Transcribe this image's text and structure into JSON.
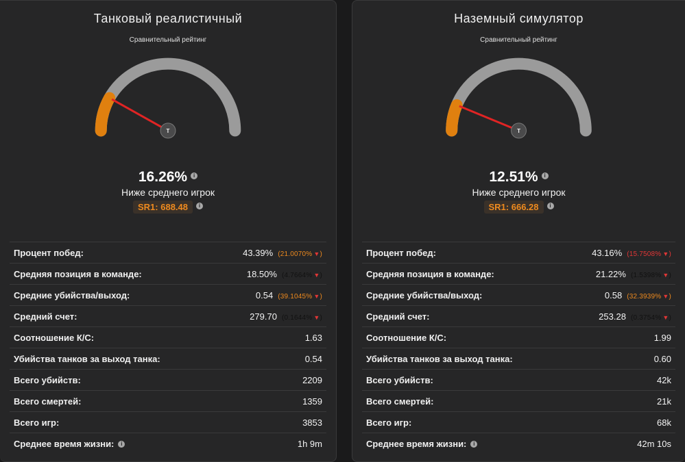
{
  "panels": [
    {
      "title": "Танковый реалистичный",
      "subtitle": "Сравнительный рейтинг",
      "gauge_percent": 16.26,
      "needle_label": "T",
      "percent": "16.26%",
      "rank": "Ниже среднего игрок",
      "sr": "SR1: 688.48",
      "stats": [
        {
          "label": "Процент побед:",
          "value": "43.39%",
          "delta": "(21.0070%",
          "delta_color": "orange"
        },
        {
          "label": "Средняя позиция в команде:",
          "value": "18.50%",
          "delta": "(4.7664%",
          "delta_color": "dark"
        },
        {
          "label": "Средние убийства/выход:",
          "value": "0.54",
          "delta": "(39.1045%",
          "delta_color": "orange"
        },
        {
          "label": "Средний счет:",
          "value": "279.70",
          "delta": "(0.1644%",
          "delta_color": "dark"
        },
        {
          "label": "Соотношение К/С:",
          "value": "1.63"
        },
        {
          "label": "Убийства танков за выход танка:",
          "value": "0.54"
        },
        {
          "label": "Всего убийств:",
          "value": "2209"
        },
        {
          "label": "Всего смертей:",
          "value": "1359"
        },
        {
          "label": "Всего игр:",
          "value": "3853"
        },
        {
          "label": "Среднее время жизни:",
          "value": "1h 9m",
          "info": true
        }
      ]
    },
    {
      "title": "Наземный симулятор",
      "subtitle": "Сравнительный рейтинг",
      "gauge_percent": 12.51,
      "needle_label": "T",
      "percent": "12.51%",
      "rank": "Ниже среднего игрок",
      "sr": "SR1: 666.28",
      "stats": [
        {
          "label": "Процент побед:",
          "value": "43.16%",
          "delta": "(15.7508%",
          "delta_color": "red"
        },
        {
          "label": "Средняя позиция в команде:",
          "value": "21.22%",
          "delta": "(1.5398%",
          "delta_color": "dark"
        },
        {
          "label": "Средние убийства/выход:",
          "value": "0.58",
          "delta": "(32.3939%",
          "delta_color": "orange"
        },
        {
          "label": "Средний счет:",
          "value": "253.28",
          "delta": "(0.3754%",
          "delta_color": "dark"
        },
        {
          "label": "Соотношение К/С:",
          "value": "1.99"
        },
        {
          "label": "Убийства танков за выход танка:",
          "value": "0.60"
        },
        {
          "label": "Всего убийств:",
          "value": "42k"
        },
        {
          "label": "Всего смертей:",
          "value": "21k"
        },
        {
          "label": "Всего игр:",
          "value": "68k"
        },
        {
          "label": "Среднее время жизни:",
          "value": "42m 10s",
          "info": true
        }
      ]
    }
  ],
  "info_glyph": "i",
  "delta_arrow": "▼",
  "delta_close": ")",
  "colors": {
    "gauge_track": "#9b9b9b",
    "gauge_fill": "#e0800f",
    "needle": "#e02424",
    "hub": "#4a4a4b"
  }
}
